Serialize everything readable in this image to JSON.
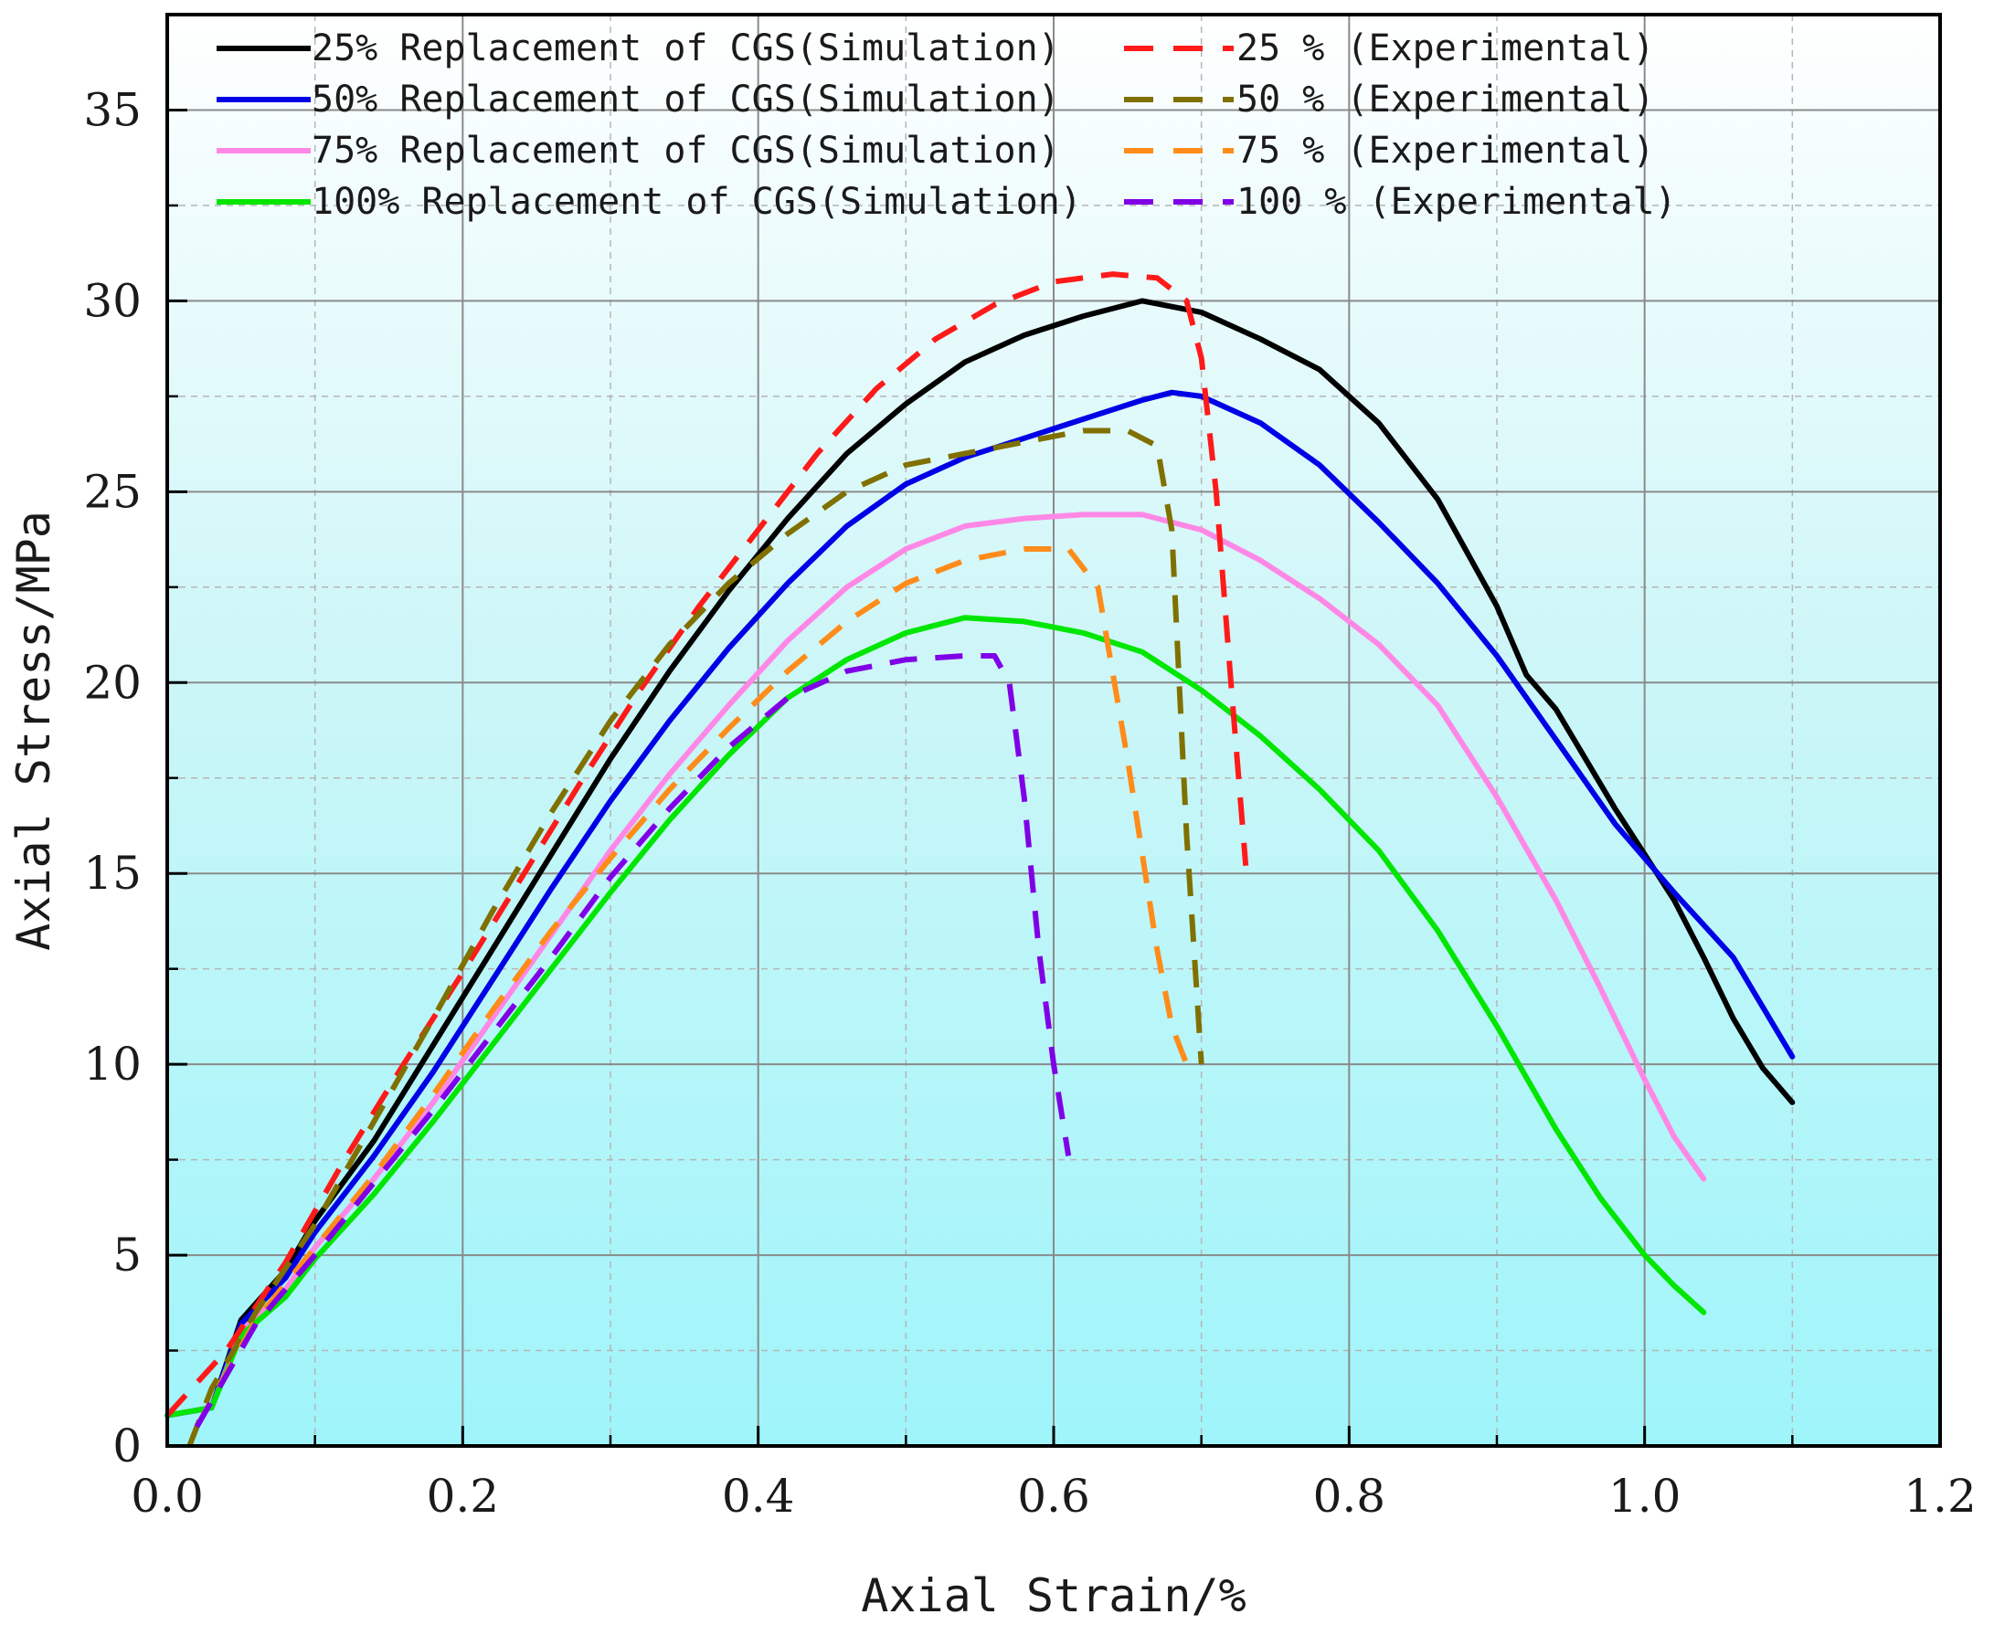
{
  "chart_data": {
    "type": "line",
    "xlabel": "Axial Strain/%",
    "ylabel": "Axial Stress/MPa",
    "xlim": [
      0.0,
      1.2
    ],
    "ylim": [
      0,
      37.5
    ],
    "x_ticks": [
      "0.0",
      "0.2",
      "0.4",
      "0.6",
      "0.8",
      "1.0",
      "1.2"
    ],
    "y_ticks": [
      "0",
      "5",
      "10",
      "15",
      "20",
      "25",
      "30",
      "35"
    ],
    "grid": true,
    "legend_position": "top",
    "series": [
      {
        "name": "25% Replacement of CGS(Simulation)",
        "color": "#000000",
        "style": "solid",
        "x": [
          0.0,
          0.03,
          0.05,
          0.08,
          0.1,
          0.14,
          0.18,
          0.22,
          0.26,
          0.3,
          0.34,
          0.38,
          0.42,
          0.46,
          0.5,
          0.54,
          0.58,
          0.62,
          0.66,
          0.7,
          0.74,
          0.78,
          0.82,
          0.86,
          0.9,
          0.92,
          0.94,
          0.96,
          0.98,
          1.0,
          1.02,
          1.04,
          1.06,
          1.08,
          1.1
        ],
        "y": [
          0.8,
          1.0,
          3.3,
          4.6,
          5.9,
          8.0,
          10.5,
          13.0,
          15.5,
          18.0,
          20.3,
          22.4,
          24.3,
          26.0,
          27.3,
          28.4,
          29.1,
          29.6,
          30.0,
          29.7,
          29.0,
          28.2,
          26.8,
          24.8,
          22.0,
          20.2,
          19.3,
          18.0,
          16.7,
          15.5,
          14.3,
          12.8,
          11.2,
          9.9,
          9.0
        ]
      },
      {
        "name": "50% Replacement of CGS(Simulation)",
        "color": "#0000e6",
        "style": "solid",
        "x": [
          0.0,
          0.03,
          0.05,
          0.08,
          0.1,
          0.14,
          0.18,
          0.22,
          0.26,
          0.3,
          0.34,
          0.38,
          0.42,
          0.46,
          0.5,
          0.54,
          0.58,
          0.62,
          0.66,
          0.68,
          0.7,
          0.74,
          0.78,
          0.82,
          0.86,
          0.9,
          0.94,
          0.98,
          1.02,
          1.06,
          1.08,
          1.1
        ],
        "y": [
          0.8,
          1.0,
          3.2,
          4.4,
          5.6,
          7.6,
          9.8,
          12.2,
          14.6,
          16.9,
          19.0,
          20.9,
          22.6,
          24.1,
          25.2,
          25.9,
          26.4,
          26.9,
          27.4,
          27.6,
          27.5,
          26.8,
          25.7,
          24.2,
          22.6,
          20.7,
          18.5,
          16.3,
          14.5,
          12.8,
          11.5,
          10.2
        ]
      },
      {
        "name": "75% Replacement of CGS(Simulation)",
        "color": "#ff88e6",
        "style": "solid",
        "x": [
          0.0,
          0.03,
          0.05,
          0.08,
          0.1,
          0.14,
          0.18,
          0.22,
          0.26,
          0.3,
          0.34,
          0.38,
          0.42,
          0.46,
          0.5,
          0.54,
          0.58,
          0.62,
          0.66,
          0.7,
          0.74,
          0.78,
          0.82,
          0.86,
          0.9,
          0.94,
          0.97,
          1.0,
          1.02,
          1.04
        ],
        "y": [
          0.8,
          1.0,
          3.0,
          4.1,
          5.2,
          7.0,
          9.0,
          11.2,
          13.4,
          15.6,
          17.6,
          19.4,
          21.1,
          22.5,
          23.5,
          24.1,
          24.3,
          24.4,
          24.4,
          24.0,
          23.2,
          22.2,
          21.0,
          19.4,
          17.0,
          14.3,
          12.0,
          9.6,
          8.1,
          7.0
        ]
      },
      {
        "name": "100% Replacement of CGS(Simulation)",
        "color": "#00e600",
        "style": "solid",
        "x": [
          0.0,
          0.03,
          0.05,
          0.08,
          0.1,
          0.14,
          0.18,
          0.22,
          0.26,
          0.3,
          0.34,
          0.38,
          0.42,
          0.46,
          0.5,
          0.54,
          0.58,
          0.62,
          0.66,
          0.7,
          0.74,
          0.78,
          0.82,
          0.86,
          0.9,
          0.94,
          0.97,
          1.0,
          1.02,
          1.04
        ],
        "y": [
          0.8,
          1.0,
          2.9,
          3.9,
          4.9,
          6.6,
          8.5,
          10.5,
          12.5,
          14.5,
          16.4,
          18.1,
          19.6,
          20.6,
          21.3,
          21.7,
          21.6,
          21.3,
          20.8,
          19.8,
          18.6,
          17.2,
          15.6,
          13.5,
          11.0,
          8.3,
          6.5,
          5.0,
          4.2,
          3.5
        ]
      },
      {
        "name": "25 % (Experimental)",
        "color": "#ff1a1a",
        "style": "dashed",
        "x": [
          0.0,
          0.04,
          0.08,
          0.12,
          0.16,
          0.2,
          0.24,
          0.28,
          0.32,
          0.36,
          0.4,
          0.44,
          0.48,
          0.52,
          0.56,
          0.6,
          0.64,
          0.67,
          0.69,
          0.7,
          0.71,
          0.72,
          0.73
        ],
        "y": [
          0.8,
          2.5,
          4.8,
          7.5,
          10.0,
          12.4,
          14.9,
          17.4,
          19.8,
          22.0,
          24.0,
          26.0,
          27.7,
          29.0,
          29.9,
          30.5,
          30.7,
          30.6,
          30.0,
          28.5,
          25.0,
          20.0,
          15.2
        ]
      },
      {
        "name": "50 % (Experimental)",
        "color": "#807000",
        "style": "dashed",
        "x": [
          0.015,
          0.03,
          0.06,
          0.1,
          0.14,
          0.18,
          0.22,
          0.26,
          0.3,
          0.34,
          0.38,
          0.42,
          0.46,
          0.5,
          0.54,
          0.58,
          0.62,
          0.65,
          0.67,
          0.68,
          0.69,
          0.7
        ],
        "y": [
          0.0,
          1.5,
          3.5,
          5.8,
          8.5,
          11.2,
          14.0,
          16.6,
          19.0,
          21.0,
          22.6,
          23.9,
          25.0,
          25.7,
          26.0,
          26.3,
          26.6,
          26.6,
          26.2,
          24.0,
          16.0,
          10.0
        ]
      },
      {
        "name": "75 % (Experimental)",
        "color": "#ff8c1a",
        "style": "dashed",
        "x": [
          0.02,
          0.06,
          0.1,
          0.14,
          0.18,
          0.22,
          0.26,
          0.3,
          0.34,
          0.38,
          0.42,
          0.46,
          0.5,
          0.54,
          0.58,
          0.61,
          0.63,
          0.65,
          0.67,
          0.68,
          0.69
        ],
        "y": [
          0.5,
          3.3,
          5.2,
          7.1,
          9.2,
          11.4,
          13.5,
          15.4,
          17.2,
          18.8,
          20.3,
          21.6,
          22.6,
          23.2,
          23.5,
          23.5,
          22.5,
          18.0,
          13.0,
          11.0,
          10.0
        ]
      },
      {
        "name": "100 % (Experimental)",
        "color": "#8000e6",
        "style": "dashed",
        "x": [
          0.02,
          0.06,
          0.1,
          0.14,
          0.18,
          0.22,
          0.26,
          0.3,
          0.34,
          0.38,
          0.42,
          0.46,
          0.5,
          0.54,
          0.56,
          0.57,
          0.58,
          0.59,
          0.6,
          0.61
        ],
        "y": [
          0.5,
          3.2,
          5.0,
          6.9,
          8.8,
          10.8,
          12.8,
          14.9,
          16.7,
          18.3,
          19.6,
          20.3,
          20.6,
          20.7,
          20.7,
          20.0,
          17.0,
          13.0,
          10.0,
          7.6
        ]
      }
    ]
  }
}
